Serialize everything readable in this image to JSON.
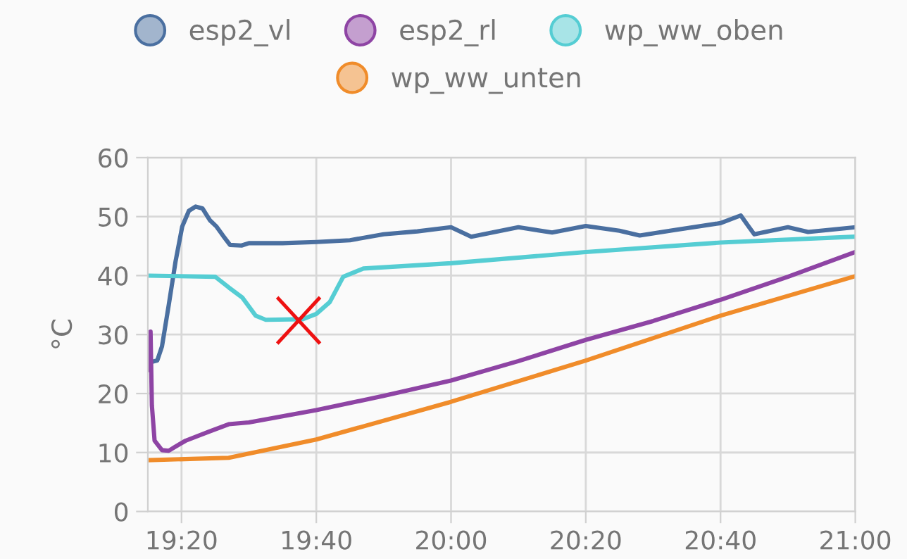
{
  "chart_data": {
    "type": "line",
    "ylabel": "°C",
    "xlim": [
      19.25,
      21.0
    ],
    "ylim": [
      0,
      60
    ],
    "yticks": [
      0,
      10,
      20,
      30,
      40,
      50,
      60
    ],
    "xticks": [
      {
        "value": 19.3333,
        "label": "19:20"
      },
      {
        "value": 19.6667,
        "label": "19:40"
      },
      {
        "value": 20.0,
        "label": "20:00"
      },
      {
        "value": 20.3333,
        "label": "20:20"
      },
      {
        "value": 20.6667,
        "label": "20:40"
      },
      {
        "value": 21.0,
        "label": "21:00"
      }
    ],
    "grid": true,
    "legend": "top",
    "marker": "none",
    "line_style": "solid",
    "series": [
      {
        "name": "esp2_vl",
        "color": "#4a6fa0",
        "x": [
          19.25,
          19.2733,
          19.285,
          19.3017,
          19.3183,
          19.335,
          19.3517,
          19.3683,
          19.385,
          19.4033,
          19.42,
          19.4367,
          19.4533,
          19.4817,
          19.5,
          19.5833,
          19.6667,
          19.75,
          19.8333,
          19.9167,
          20.0,
          20.05,
          20.1667,
          20.25,
          20.3333,
          20.4167,
          20.4667,
          20.55,
          20.6667,
          20.7167,
          20.7333,
          20.75,
          20.8333,
          20.8833,
          21.0
        ],
        "values": [
          25.2,
          25.6,
          28,
          35,
          42.3,
          48.3,
          51,
          51.7,
          51.4,
          49.4,
          48.3,
          46.7,
          45.2,
          45.1,
          45.5,
          45.5,
          45.7,
          46,
          47,
          47.5,
          48.2,
          46.6,
          48.2,
          47.3,
          48.4,
          47.6,
          46.8,
          47.7,
          48.9,
          50.2,
          48.6,
          47,
          48.2,
          47.4,
          48.2
        ]
      },
      {
        "name": "esp2_rl",
        "color": "#8e44a4",
        "x": [
          19.25,
          19.2567,
          19.26,
          19.2667,
          19.285,
          19.3017,
          19.3183,
          19.3433,
          19.4,
          19.45,
          19.5,
          19.6667,
          19.8333,
          20.0,
          20.1667,
          20.3333,
          20.5,
          20.6667,
          20.8333,
          21.0
        ],
        "values": [
          24,
          30.5,
          18,
          12,
          10.4,
          10.3,
          11,
          12,
          13.5,
          14.8,
          15.1,
          17.2,
          19.6,
          22.2,
          25.5,
          29.1,
          32.3,
          35.9,
          39.8,
          44
        ]
      },
      {
        "name": "wp_ww_oben",
        "color": "#55cdd3",
        "x": [
          19.25,
          19.4167,
          19.45,
          19.4833,
          19.5167,
          19.5417,
          19.6333,
          19.6667,
          19.7,
          19.7333,
          19.7833,
          20.0,
          20.3333,
          20.6667,
          21.0
        ],
        "values": [
          40,
          39.8,
          38,
          36.3,
          33.2,
          32.5,
          32.6,
          33.5,
          35.5,
          39.8,
          41.2,
          42.1,
          44,
          45.6,
          46.6
        ]
      },
      {
        "name": "wp_ww_unten",
        "color": "#f08c2a",
        "x": [
          19.25,
          19.45,
          19.6667,
          20.0,
          20.3333,
          20.6667,
          21.0
        ],
        "values": [
          8.7,
          9.1,
          12.2,
          18.6,
          25.6,
          33.2,
          39.9
        ]
      }
    ]
  }
}
